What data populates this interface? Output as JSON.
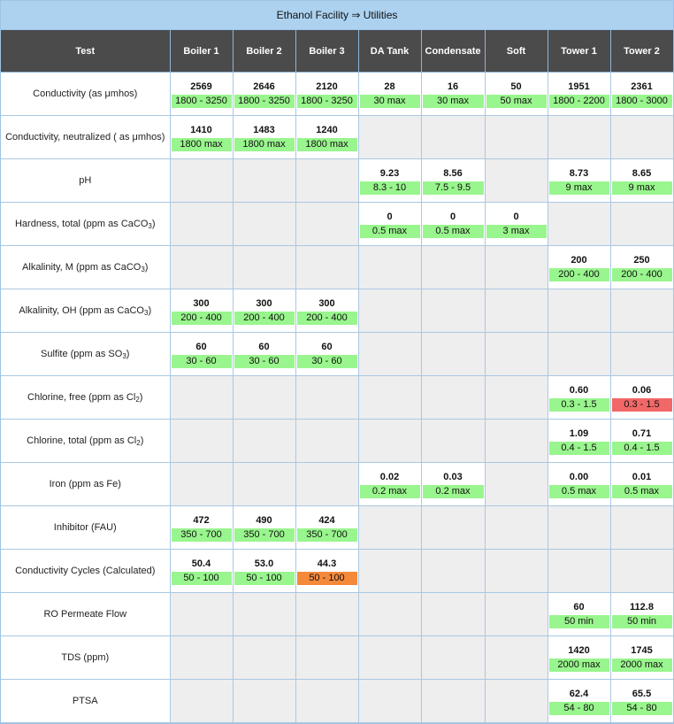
{
  "title": "Ethanol Facility ⇒ Utilities",
  "colors": {
    "ok": "#99f58d",
    "warn": "#f4893a",
    "bad": "#f26767",
    "header": "#4b4b4b",
    "title_bar": "#acd2f0"
  },
  "columns": [
    "Test",
    "Boiler 1",
    "Boiler 2",
    "Boiler 3",
    "DA Tank",
    "Condensate",
    "Soft",
    "Tower 1",
    "Tower 2"
  ],
  "rows": [
    {
      "test": "Conductivity (as μmhos)",
      "sub": "",
      "test_suffix": "",
      "cells": [
        {
          "value": "2569",
          "range": "1800 - 3250",
          "status": "ok"
        },
        {
          "value": "2646",
          "range": "1800 - 3250",
          "status": "ok"
        },
        {
          "value": "2120",
          "range": "1800 - 3250",
          "status": "ok"
        },
        {
          "value": "28",
          "range": "30 max",
          "status": "ok"
        },
        {
          "value": "16",
          "range": "30 max",
          "status": "ok"
        },
        {
          "value": "50",
          "range": "50 max",
          "status": "ok"
        },
        {
          "value": "1951",
          "range": "1800 - 2200",
          "status": "ok"
        },
        {
          "value": "2361",
          "range": "1800 - 3000",
          "status": "ok"
        }
      ]
    },
    {
      "test": "Conductivity, neutralized ( as μmhos)",
      "sub": "",
      "test_suffix": "",
      "cells": [
        {
          "value": "1410",
          "range": "1800 max",
          "status": "ok"
        },
        {
          "value": "1483",
          "range": "1800 max",
          "status": "ok"
        },
        {
          "value": "1240",
          "range": "1800 max",
          "status": "ok"
        },
        null,
        null,
        null,
        null,
        null
      ]
    },
    {
      "test": "pH",
      "sub": "",
      "test_suffix": "",
      "cells": [
        null,
        null,
        null,
        {
          "value": "9.23",
          "range": "8.3 - 10",
          "status": "ok"
        },
        {
          "value": "8.56",
          "range": "7.5 - 9.5",
          "status": "ok"
        },
        null,
        {
          "value": "8.73",
          "range": "9 max",
          "status": "ok"
        },
        {
          "value": "8.65",
          "range": "9 max",
          "status": "ok"
        }
      ]
    },
    {
      "test": "Hardness, total (ppm as CaCO",
      "sub": "3",
      "test_suffix": ")",
      "cells": [
        null,
        null,
        null,
        {
          "value": "0",
          "range": "0.5 max",
          "status": "ok"
        },
        {
          "value": "0",
          "range": "0.5 max",
          "status": "ok"
        },
        {
          "value": "0",
          "range": "3 max",
          "status": "ok"
        },
        null,
        null
      ]
    },
    {
      "test": "Alkalinity, M (ppm as CaCO",
      "sub": "3",
      "test_suffix": ")",
      "cells": [
        null,
        null,
        null,
        null,
        null,
        null,
        {
          "value": "200",
          "range": "200 - 400",
          "status": "ok"
        },
        {
          "value": "250",
          "range": "200 - 400",
          "status": "ok"
        }
      ]
    },
    {
      "test": "Alkalinity, OH (ppm as CaCO",
      "sub": "3",
      "test_suffix": ")",
      "cells": [
        {
          "value": "300",
          "range": "200 - 400",
          "status": "ok"
        },
        {
          "value": "300",
          "range": "200 - 400",
          "status": "ok"
        },
        {
          "value": "300",
          "range": "200 - 400",
          "status": "ok"
        },
        null,
        null,
        null,
        null,
        null
      ]
    },
    {
      "test": "Sulfite (ppm as SO",
      "sub": "3",
      "test_suffix": ")",
      "cells": [
        {
          "value": "60",
          "range": "30 - 60",
          "status": "ok"
        },
        {
          "value": "60",
          "range": "30 - 60",
          "status": "ok"
        },
        {
          "value": "60",
          "range": "30 - 60",
          "status": "ok"
        },
        null,
        null,
        null,
        null,
        null
      ]
    },
    {
      "test": "Chlorine, free (ppm as Cl",
      "sub": "2",
      "test_suffix": ")",
      "cells": [
        null,
        null,
        null,
        null,
        null,
        null,
        {
          "value": "0.60",
          "range": "0.3 - 1.5",
          "status": "ok"
        },
        {
          "value": "0.06",
          "range": "0.3 - 1.5",
          "status": "bad"
        }
      ]
    },
    {
      "test": "Chlorine, total (ppm as Cl",
      "sub": "2",
      "test_suffix": ")",
      "cells": [
        null,
        null,
        null,
        null,
        null,
        null,
        {
          "value": "1.09",
          "range": "0.4 - 1.5",
          "status": "ok"
        },
        {
          "value": "0.71",
          "range": "0.4 - 1.5",
          "status": "ok"
        }
      ]
    },
    {
      "test": "Iron (ppm as Fe)",
      "sub": "",
      "test_suffix": "",
      "cells": [
        null,
        null,
        null,
        {
          "value": "0.02",
          "range": "0.2 max",
          "status": "ok"
        },
        {
          "value": "0.03",
          "range": "0.2 max",
          "status": "ok"
        },
        null,
        {
          "value": "0.00",
          "range": "0.5 max",
          "status": "ok"
        },
        {
          "value": "0.01",
          "range": "0.5 max",
          "status": "ok"
        }
      ]
    },
    {
      "test": "Inhibitor (FAU)",
      "sub": "",
      "test_suffix": "",
      "cells": [
        {
          "value": "472",
          "range": "350 - 700",
          "status": "ok"
        },
        {
          "value": "490",
          "range": "350 - 700",
          "status": "ok"
        },
        {
          "value": "424",
          "range": "350 - 700",
          "status": "ok"
        },
        null,
        null,
        null,
        null,
        null
      ]
    },
    {
      "test": "Conductivity Cycles (Calculated)",
      "sub": "",
      "test_suffix": "",
      "cells": [
        {
          "value": "50.4",
          "range": "50 - 100",
          "status": "ok"
        },
        {
          "value": "53.0",
          "range": "50 - 100",
          "status": "ok"
        },
        {
          "value": "44.3",
          "range": "50 - 100",
          "status": "warn"
        },
        null,
        null,
        null,
        null,
        null
      ]
    },
    {
      "test": "RO Permeate Flow",
      "sub": "",
      "test_suffix": "",
      "cells": [
        null,
        null,
        null,
        null,
        null,
        null,
        {
          "value": "60",
          "range": "50 min",
          "status": "ok"
        },
        {
          "value": "112.8",
          "range": "50 min",
          "status": "ok"
        }
      ]
    },
    {
      "test": "TDS (ppm)",
      "sub": "",
      "test_suffix": "",
      "cells": [
        null,
        null,
        null,
        null,
        null,
        null,
        {
          "value": "1420",
          "range": "2000 max",
          "status": "ok"
        },
        {
          "value": "1745",
          "range": "2000 max",
          "status": "ok"
        }
      ]
    },
    {
      "test": "PTSA",
      "sub": "",
      "test_suffix": "",
      "cells": [
        null,
        null,
        null,
        null,
        null,
        null,
        {
          "value": "62.4",
          "range": "54 - 80",
          "status": "ok"
        },
        {
          "value": "65.5",
          "range": "54 - 80",
          "status": "ok"
        }
      ]
    }
  ]
}
